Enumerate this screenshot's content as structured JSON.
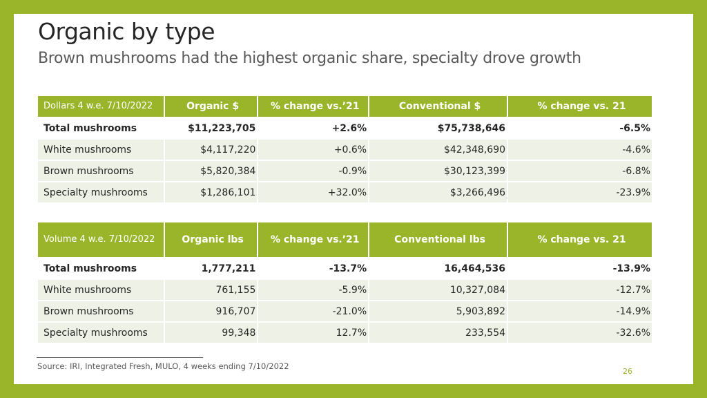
{
  "title": "Organic by type",
  "subtitle": "Brown mushrooms had the highest organic share, specialty drove growth",
  "dollars_table": {
    "headers": [
      "Dollars 4 w.e. 7/10/2022",
      "Organic $",
      "% change vs.’21",
      "Conventional $",
      "% change vs. 21"
    ],
    "rows": [
      {
        "label": "Total mushrooms",
        "organic": "$11,223,705",
        "organic_change": "+2.6%",
        "conventional": "$75,738,646",
        "conventional_change": "-6.5%"
      },
      {
        "label": "White mushrooms",
        "organic": "$4,117,220",
        "organic_change": "+0.6%",
        "conventional": "$42,348,690",
        "conventional_change": "-4.6%"
      },
      {
        "label": "Brown mushrooms",
        "organic": "$5,820,384",
        "organic_change": "-0.9%",
        "conventional": "$30,123,399",
        "conventional_change": "-6.8%"
      },
      {
        "label": "Specialty mushrooms",
        "organic": "$1,286,101",
        "organic_change": "+32.0%",
        "conventional": "$3,266,496",
        "conventional_change": "-23.9%"
      }
    ]
  },
  "volume_table": {
    "headers": [
      "Volume 4 w.e. 7/10/2022",
      "Organic lbs",
      "% change vs.’21",
      "Conventional lbs",
      "% change vs. 21"
    ],
    "rows": [
      {
        "label": "Total mushrooms",
        "organic": "1,777,211",
        "organic_change": "-13.7%",
        "conventional": "16,464,536",
        "conventional_change": "-13.9%"
      },
      {
        "label": "White mushrooms",
        "organic": "761,155",
        "organic_change": "-5.9%",
        "conventional": "10,327,084",
        "conventional_change": "-12.7%"
      },
      {
        "label": "Brown mushrooms",
        "organic": "916,707",
        "organic_change": "-21.0%",
        "conventional": "5,903,892",
        "conventional_change": "-14.9%"
      },
      {
        "label": "Specialty mushrooms",
        "organic": "99,348",
        "organic_change": "12.7%",
        "conventional": "233,554",
        "conventional_change": "-32.6%"
      }
    ]
  },
  "source": "Source: IRI, Integrated Fresh, MULO, 4 weeks ending 7/10/2022",
  "page_number": "26",
  "colors": {
    "accent": "#9bb52b",
    "row_fill": "#eef1e5",
    "title": "#262626",
    "subtitle": "#595959"
  }
}
